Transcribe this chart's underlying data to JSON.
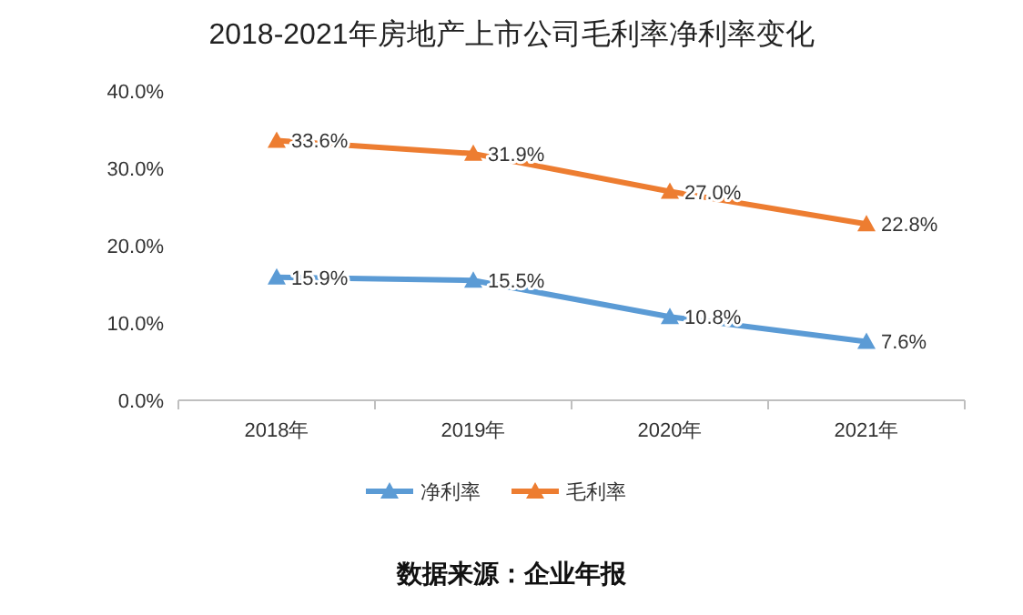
{
  "chart_data": {
    "type": "line",
    "title": "2018-2021年房地产上市公司毛利率净利率变化",
    "categories": [
      "2018年",
      "2019年",
      "2020年",
      "2021年"
    ],
    "series": [
      {
        "name": "净利率",
        "color": "#5b9bd5",
        "values": [
          15.9,
          15.5,
          10.8,
          7.6
        ],
        "value_labels": [
          "15.9%",
          "15.5%",
          "10.8%",
          "7.6%"
        ]
      },
      {
        "name": "毛利率",
        "color": "#ed7d31",
        "values": [
          33.6,
          31.9,
          27.0,
          22.8
        ],
        "value_labels": [
          "33.6%",
          "31.9%",
          "27.0%",
          "22.8%"
        ]
      }
    ],
    "ylim": [
      0,
      40
    ],
    "yticks": [
      {
        "value": 0,
        "label": "0.0%"
      },
      {
        "value": 10,
        "label": "10.0%"
      },
      {
        "value": 20,
        "label": "20.0%"
      },
      {
        "value": 30,
        "label": "30.0%"
      },
      {
        "value": 40,
        "label": "40.0%"
      }
    ],
    "marker": "triangle",
    "legend": "bottom",
    "annotations": [
      "数据来源：企业年报"
    ]
  }
}
